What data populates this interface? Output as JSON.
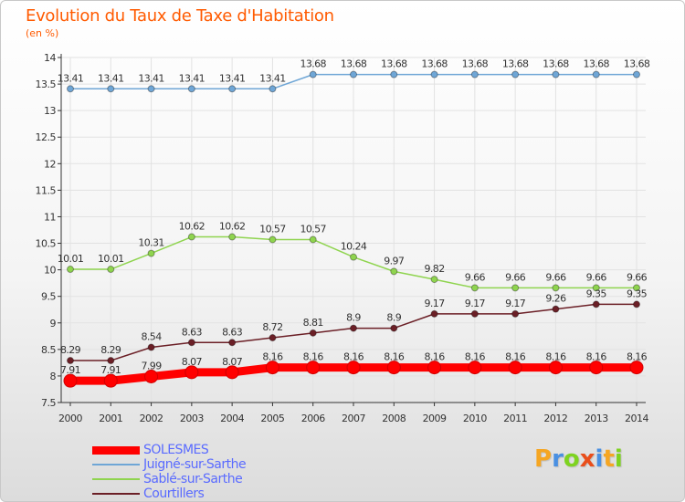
{
  "header": {
    "title": "Evolution du Taux de Taxe d'Habitation",
    "subtitle": "(en %)"
  },
  "logo": {
    "letters": [
      "P",
      "r",
      "o",
      "x",
      "i",
      "t",
      "i"
    ],
    "colors": [
      "#f5a623",
      "#4a90e2",
      "#7ed321",
      "#e94e1b",
      "#4a90e2",
      "#f5a623",
      "#7ed321"
    ]
  },
  "chart_data": {
    "type": "line",
    "title": "Evolution du Taux de Taxe d'Habitation",
    "subtitle": "(en %)",
    "xlabel": "",
    "ylabel": "",
    "categories": [
      "2000",
      "2001",
      "2002",
      "2003",
      "2004",
      "2005",
      "2006",
      "2007",
      "2008",
      "2009",
      "2010",
      "2011",
      "2012",
      "2013",
      "2014"
    ],
    "ylim": [
      7.5,
      14
    ],
    "yticks": [
      7.5,
      8,
      8.5,
      9,
      9.5,
      10,
      10.5,
      11,
      11.5,
      12,
      12.5,
      13,
      13.5,
      14
    ],
    "grid": true,
    "legend_position": "bottom-left",
    "series": [
      {
        "name": "SOLESMES",
        "color": "#ff0000",
        "emphasis": true,
        "values": [
          7.91,
          7.91,
          7.99,
          8.07,
          8.07,
          8.16,
          8.16,
          8.16,
          8.16,
          8.16,
          8.16,
          8.16,
          8.16,
          8.16,
          8.16
        ],
        "labels": [
          "7.91",
          "7.91",
          "7.99",
          "8.07",
          "8.07",
          "8.16",
          "8.16",
          "8.16",
          "8.16",
          "8.16",
          "8.16",
          "8.16",
          "8.16",
          "8.16",
          "8.16"
        ]
      },
      {
        "name": "Juigné-sur-Sarthe",
        "color": "#6fa6d6",
        "emphasis": false,
        "values": [
          13.41,
          13.41,
          13.41,
          13.41,
          13.41,
          13.41,
          13.68,
          13.68,
          13.68,
          13.68,
          13.68,
          13.68,
          13.68,
          13.68,
          13.68
        ],
        "labels": [
          "13.41",
          "13.41",
          "13.41",
          "13.41",
          "13.41",
          "13.41",
          "13.68",
          "13.68",
          "13.68",
          "13.68",
          "13.68",
          "13.68",
          "13.68",
          "13.68",
          "13.68"
        ]
      },
      {
        "name": "Sablé-sur-Sarthe",
        "color": "#8fd44f",
        "emphasis": false,
        "values": [
          10.01,
          10.01,
          10.31,
          10.62,
          10.62,
          10.57,
          10.57,
          10.24,
          9.97,
          9.82,
          9.66,
          9.66,
          9.66,
          9.66,
          9.66
        ],
        "labels": [
          "10.01",
          "10.01",
          "10.31",
          "10.62",
          "10.62",
          "10.57",
          "10.57",
          "10.24",
          "9.97",
          "9.82",
          "9.66",
          "9.66",
          "9.66",
          "9.66",
          "9.66"
        ]
      },
      {
        "name": "Courtillers",
        "color": "#6b1f26",
        "emphasis": false,
        "values": [
          8.29,
          8.29,
          8.54,
          8.63,
          8.63,
          8.72,
          8.81,
          8.9,
          8.9,
          9.17,
          9.17,
          9.17,
          9.26,
          9.35,
          9.35
        ],
        "labels": [
          "8.29",
          "8.29",
          "8.54",
          "8.63",
          "8.63",
          "8.72",
          "8.81",
          "8.9",
          "8.9",
          "9.17",
          "9.17",
          "9.17",
          "9.26",
          "9.35",
          "9.35"
        ]
      }
    ]
  }
}
